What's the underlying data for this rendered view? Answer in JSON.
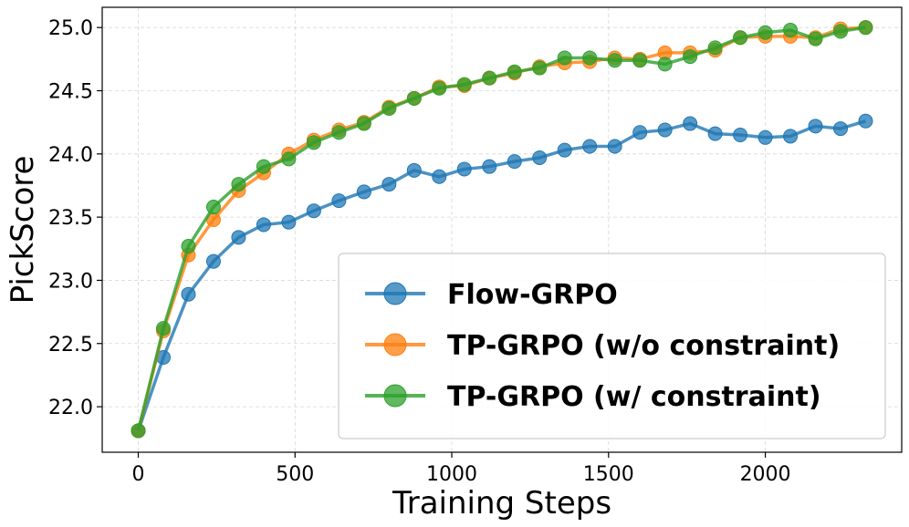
{
  "chart_data": {
    "type": "line",
    "title": "",
    "xlabel": "Training Steps",
    "ylabel": "PickScore",
    "xlim": [
      -115,
      2435
    ],
    "ylim": [
      21.64,
      25.16
    ],
    "xticks": [
      0,
      500,
      1000,
      1500,
      2000
    ],
    "yticks": [
      22.0,
      22.5,
      23.0,
      23.5,
      24.0,
      24.5,
      25.0
    ],
    "xtick_labels": [
      "0",
      "500",
      "1000",
      "1500",
      "2000"
    ],
    "ytick_labels": [
      "22.0",
      "22.5",
      "23.0",
      "23.5",
      "24.0",
      "24.5",
      "25.0"
    ],
    "grid": true,
    "legend_position": "lower-right",
    "x": [
      0,
      80,
      160,
      240,
      320,
      400,
      480,
      560,
      640,
      720,
      800,
      880,
      960,
      1040,
      1120,
      1200,
      1280,
      1360,
      1440,
      1520,
      1600,
      1680,
      1760,
      1840,
      1920,
      2000,
      2080,
      2160,
      2240,
      2320
    ],
    "series": [
      {
        "name": "Flow-GRPO",
        "color": "#1f77b4",
        "values": [
          21.81,
          22.39,
          22.89,
          23.15,
          23.34,
          23.44,
          23.46,
          23.55,
          23.63,
          23.7,
          23.76,
          23.87,
          23.82,
          23.88,
          23.9,
          23.94,
          23.97,
          24.03,
          24.06,
          24.06,
          24.17,
          24.19,
          24.24,
          24.16,
          24.15,
          24.13,
          24.14,
          24.22,
          24.2,
          24.26
        ]
      },
      {
        "name": "TP-GRPO (w/o constraint)",
        "color": "#ff7f0e",
        "values": [
          21.81,
          22.6,
          23.2,
          23.48,
          23.71,
          23.85,
          24.0,
          24.11,
          24.19,
          24.25,
          24.37,
          24.44,
          24.53,
          24.54,
          24.6,
          24.64,
          24.69,
          24.72,
          24.73,
          24.76,
          24.75,
          24.8,
          24.8,
          24.82,
          24.92,
          24.93,
          24.93,
          24.92,
          24.99,
          25.0
        ]
      },
      {
        "name": "TP-GRPO (w/ constraint)",
        "color": "#2ca02c",
        "values": [
          21.81,
          22.62,
          23.27,
          23.58,
          23.76,
          23.9,
          23.96,
          24.09,
          24.17,
          24.24,
          24.36,
          24.44,
          24.52,
          24.55,
          24.6,
          24.65,
          24.68,
          24.76,
          24.76,
          24.74,
          24.74,
          24.71,
          24.77,
          24.84,
          24.92,
          24.96,
          24.98,
          24.91,
          24.97,
          25.0
        ]
      }
    ]
  }
}
